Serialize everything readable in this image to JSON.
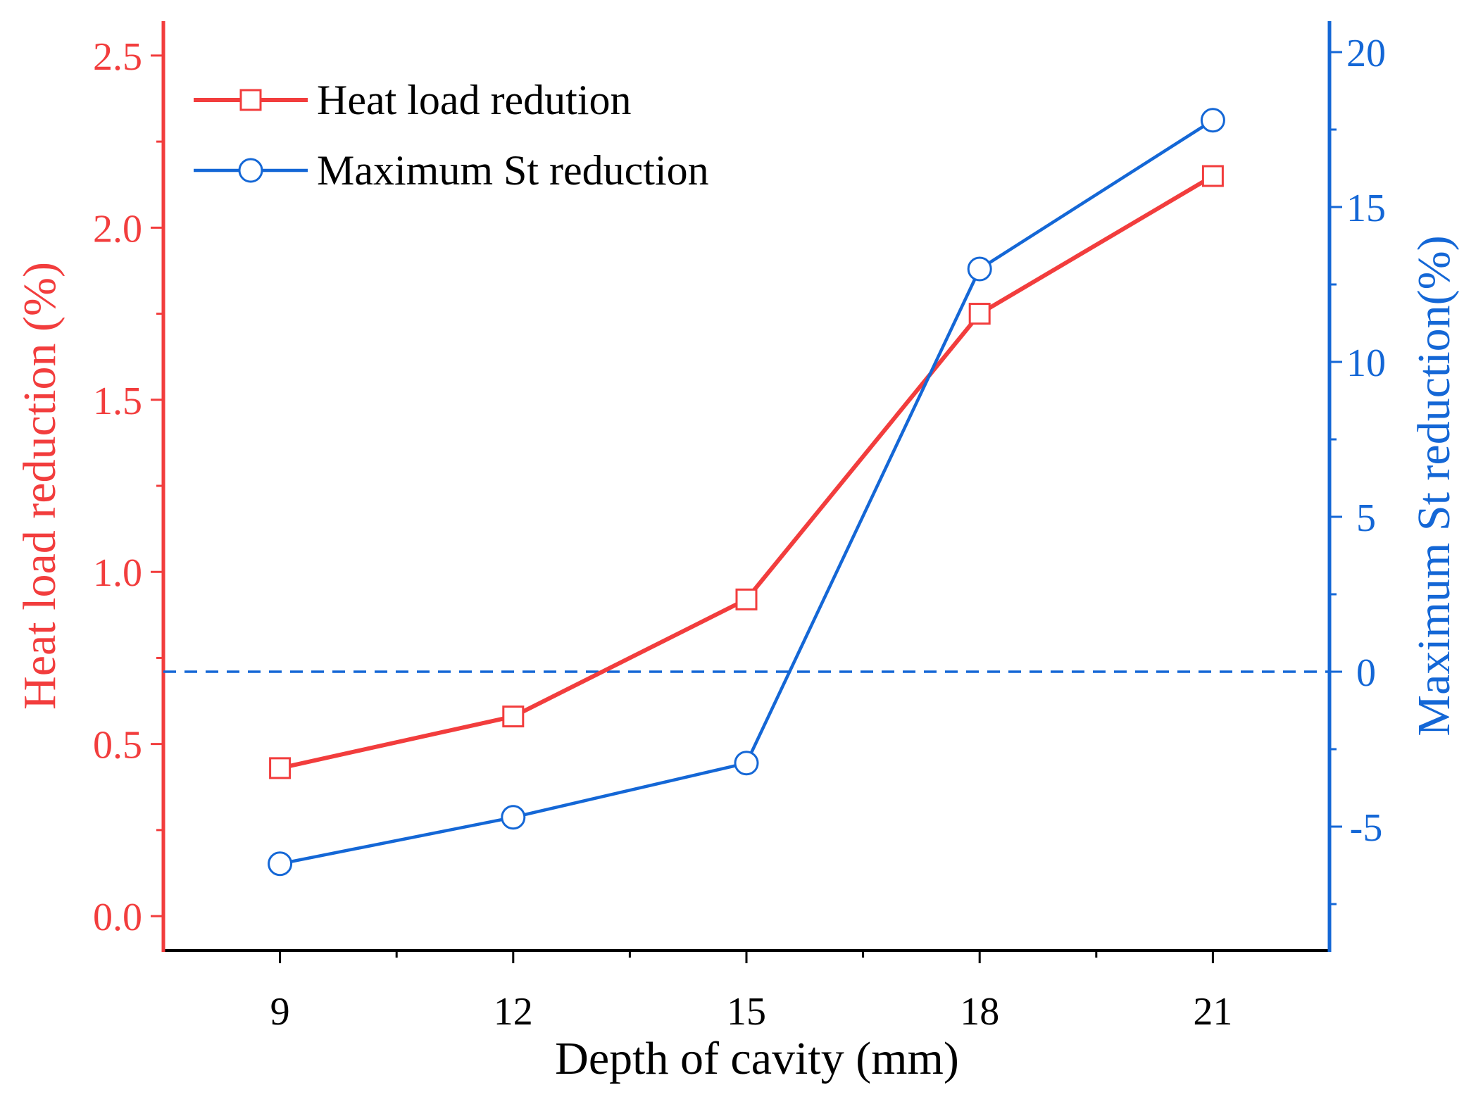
{
  "chart_data": {
    "type": "line",
    "x": [
      9,
      12,
      15,
      18,
      21
    ],
    "xlabel": "Depth of cavity (mm)",
    "xlim": [
      7.5,
      22.5
    ],
    "x_ticks": [
      "9",
      "12",
      "15",
      "18",
      "21"
    ],
    "ylabel_left": "Heat load reduction (%)",
    "ylim_left": [
      -0.1,
      2.6
    ],
    "y_ticks_left": [
      "0.0",
      "0.5",
      "1.0",
      "1.5",
      "2.0",
      "2.5"
    ],
    "ylabel_right": "Maximum St reduction(%)",
    "ylim_right": [
      -9,
      21
    ],
    "y_ticks_right": [
      "-5",
      "0",
      "5",
      "10",
      "15",
      "20"
    ],
    "reference_line": {
      "axis": "right",
      "value": 0,
      "style": "dashed"
    },
    "series": [
      {
        "name": "Heat load redution",
        "axis": "left",
        "marker": "square",
        "color": "#f23d3d",
        "values": [
          0.43,
          0.58,
          0.92,
          1.75,
          2.15
        ]
      },
      {
        "name": "Maximum St reduction",
        "axis": "right",
        "marker": "circle",
        "color": "#1467d6",
        "values": [
          -6.2,
          -4.7,
          -2.95,
          13.0,
          17.8
        ]
      }
    ],
    "legend_position": "top-left",
    "grid": false
  }
}
